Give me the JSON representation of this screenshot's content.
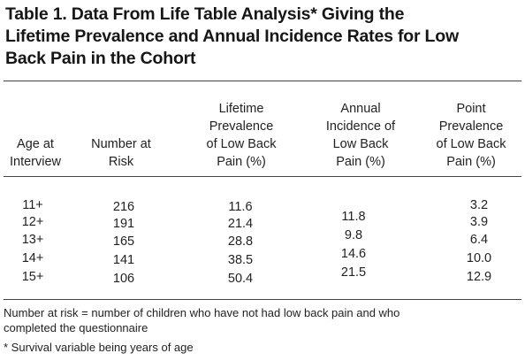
{
  "table": {
    "title_lines": [
      "Table 1. Data From Life Table Analysis* Giving the",
      "Lifetime Prevalence and Annual Incidence Rates for Low",
      "Back Pain in the Cohort"
    ],
    "headers": [
      [
        "Age at",
        "Interview"
      ],
      [
        "Number at",
        "Risk"
      ],
      [
        "Lifetime",
        "Prevalence",
        "of Low Back",
        "Pain (%)"
      ],
      [
        "Annual",
        "Incidence of",
        "Low Back",
        "Pain (%)"
      ],
      [
        "Point",
        "Prevalence",
        "of Low Back",
        "Pain (%)"
      ]
    ],
    "rows": [
      {
        "age": "11+",
        "risk": "216",
        "lifetime": "11.6",
        "point": "3.2"
      },
      {
        "age": "12+",
        "risk": "191",
        "lifetime": "21.4",
        "point": "3.9"
      },
      {
        "age": "13+",
        "risk": "165",
        "lifetime": "28.8",
        "point": "6.4"
      },
      {
        "age": "14+",
        "risk": "141",
        "lifetime": "38.5",
        "point": "10.0"
      },
      {
        "age": "15+",
        "risk": "106",
        "lifetime": "50.4",
        "point": "12.9"
      }
    ],
    "annual_incidence": [
      "11.8",
      "9.8",
      "14.6",
      "21.5"
    ],
    "footnotes": [
      "Number at risk = number of children who have not had low back pain and who",
      "completed the questionnaire",
      "* Survival variable being years of age"
    ]
  }
}
